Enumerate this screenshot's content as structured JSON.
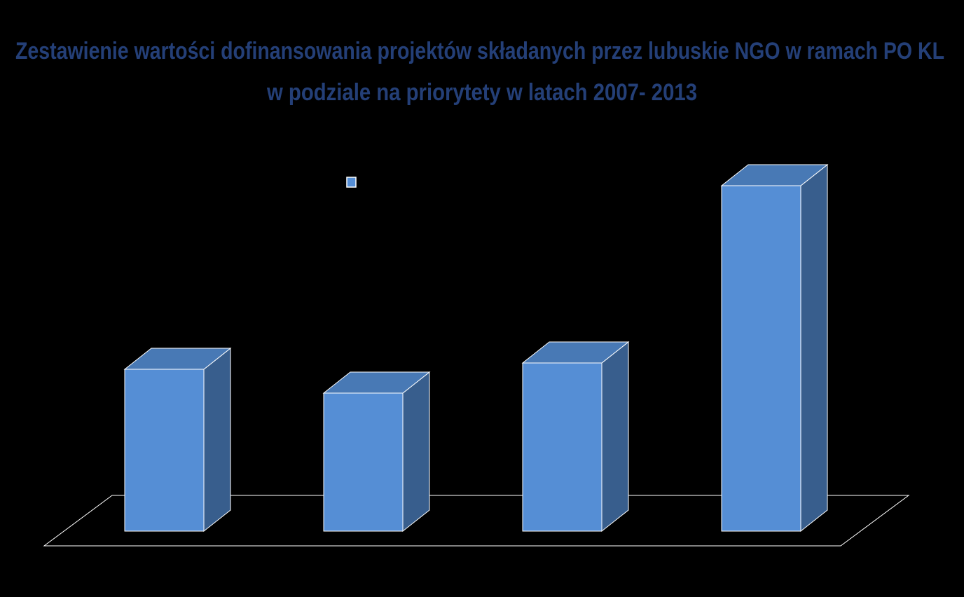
{
  "chart_data": {
    "type": "bar3d",
    "title": [
      "Zestawienie wartości dofinansowania projektów składanych przez lubuskie NGO w ramach PO KL",
      "w podziale na priorytety w latach 2007- 2013"
    ],
    "categories": [
      null,
      null,
      null,
      null
    ],
    "series": [
      {
        "color": "#558ed5",
        "values": [
          231,
          197,
          240,
          493
        ]
      }
    ],
    "ylim": [
      0,
      500
    ]
  }
}
